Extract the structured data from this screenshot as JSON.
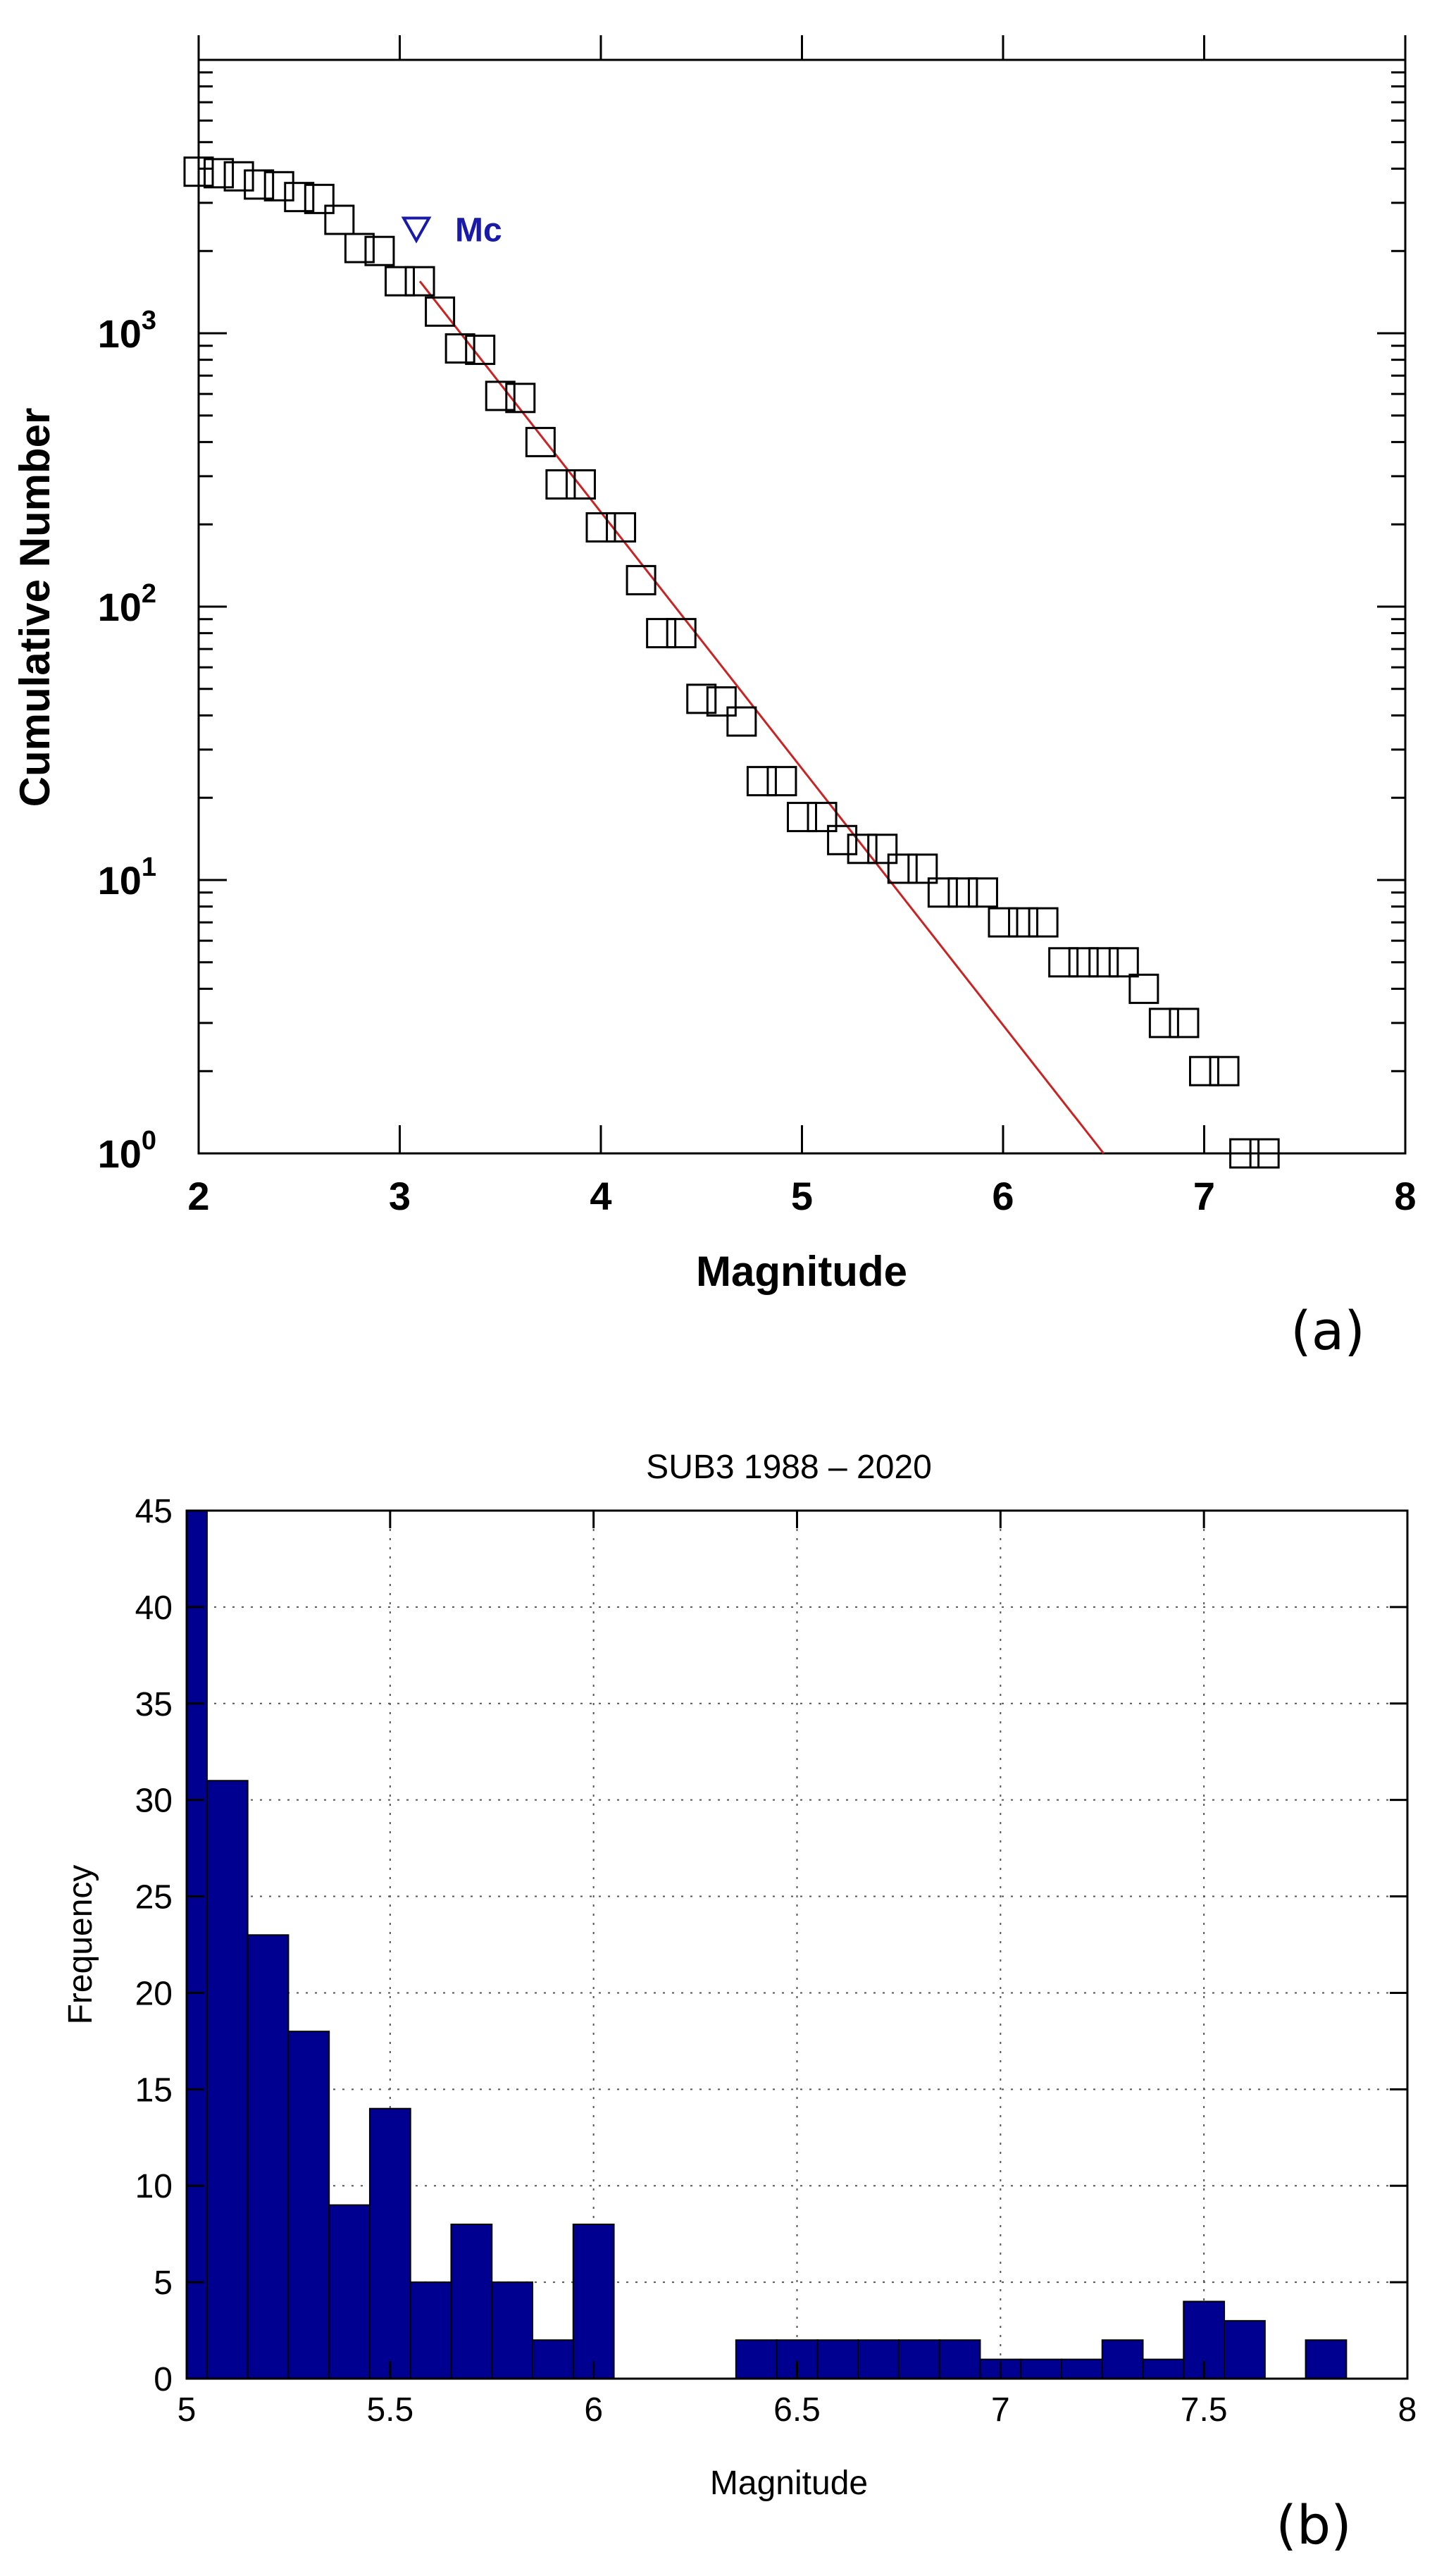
{
  "colors": {
    "fit_line": "#cc2222",
    "mc_marker": "#1a1aaa",
    "bars": "#000090",
    "bar_edge": "#000000"
  },
  "panel_a": {
    "label": "(a)",
    "chart_data": {
      "type": "scatter",
      "xlabel": "Magnitude",
      "ylabel": "Cumulative Number",
      "xlim": [
        2,
        8
      ],
      "ylim": [
        1,
        10000
      ],
      "yscale": "log",
      "x_ticks": [
        "2",
        "3",
        "4",
        "5",
        "6",
        "7",
        "8"
      ],
      "y_ticks": [
        {
          "base": "10",
          "exp": "0"
        },
        {
          "base": "10",
          "exp": "1"
        },
        {
          "base": "10",
          "exp": "2"
        },
        {
          "base": "10",
          "exp": "3"
        }
      ],
      "grid": false,
      "mc": {
        "label": "Mc",
        "magnitude": 3.1
      },
      "series": [
        {
          "marker": "square",
          "points": [
            [
              2.0,
              3900
            ],
            [
              2.1,
              3850
            ],
            [
              2.2,
              3750
            ],
            [
              2.3,
              3500
            ],
            [
              2.4,
              3450
            ],
            [
              2.5,
              3150
            ],
            [
              2.6,
              3100
            ],
            [
              2.7,
              2600
            ],
            [
              2.8,
              2050
            ],
            [
              2.9,
              2000
            ],
            [
              3.0,
              1550
            ],
            [
              3.1,
              1550
            ],
            [
              3.2,
              1200
            ],
            [
              3.3,
              880
            ],
            [
              3.4,
              870
            ],
            [
              3.5,
              590
            ],
            [
              3.6,
              580
            ],
            [
              3.7,
              400
            ],
            [
              3.8,
              280
            ],
            [
              3.9,
              280
            ],
            [
              4.0,
              195
            ],
            [
              4.1,
              195
            ],
            [
              4.2,
              125
            ],
            [
              4.3,
              80
            ],
            [
              4.4,
              80
            ],
            [
              4.5,
              46
            ],
            [
              4.6,
              45
            ],
            [
              4.7,
              38
            ],
            [
              4.8,
              23
            ],
            [
              4.9,
              23
            ],
            [
              5.0,
              17
            ],
            [
              5.1,
              17
            ],
            [
              5.2,
              14
            ],
            [
              5.3,
              13
            ],
            [
              5.4,
              13
            ],
            [
              5.5,
              11
            ],
            [
              5.6,
              11
            ],
            [
              5.7,
              9
            ],
            [
              5.8,
              9
            ],
            [
              5.9,
              9
            ],
            [
              6.0,
              7
            ],
            [
              6.1,
              7
            ],
            [
              6.2,
              7
            ],
            [
              6.3,
              5
            ],
            [
              6.4,
              5
            ],
            [
              6.5,
              5
            ],
            [
              6.6,
              5
            ],
            [
              6.7,
              4
            ],
            [
              6.8,
              3
            ],
            [
              6.9,
              3
            ],
            [
              7.0,
              2
            ],
            [
              7.1,
              2
            ],
            [
              7.2,
              1
            ],
            [
              7.3,
              1
            ]
          ]
        }
      ],
      "fit_line": {
        "from": [
          3.1,
          1550
        ],
        "to": [
          6.5,
          1
        ]
      }
    }
  },
  "panel_b": {
    "label": "(b)",
    "chart_data": {
      "type": "bar",
      "title": "SUB3 1988 – 2020",
      "xlabel": "Magnitude",
      "ylabel": "Frequency",
      "xlim": [
        5,
        8
      ],
      "ylim": [
        0,
        45
      ],
      "grid": true,
      "x_ticks": [
        "5",
        "5.5",
        "6",
        "6.5",
        "7",
        "7.5",
        "8"
      ],
      "y_ticks": [
        "0",
        "5",
        "10",
        "15",
        "20",
        "25",
        "30",
        "35",
        "40",
        "45"
      ],
      "bin_width": 0.1,
      "bins": [
        {
          "center": 5.0,
          "count": 45
        },
        {
          "center": 5.1,
          "count": 31
        },
        {
          "center": 5.2,
          "count": 23
        },
        {
          "center": 5.3,
          "count": 18
        },
        {
          "center": 5.4,
          "count": 9
        },
        {
          "center": 5.5,
          "count": 14
        },
        {
          "center": 5.6,
          "count": 5
        },
        {
          "center": 5.7,
          "count": 8
        },
        {
          "center": 5.8,
          "count": 5
        },
        {
          "center": 5.9,
          "count": 2
        },
        {
          "center": 6.0,
          "count": 8
        },
        {
          "center": 6.1,
          "count": 0
        },
        {
          "center": 6.2,
          "count": 0
        },
        {
          "center": 6.3,
          "count": 0
        },
        {
          "center": 6.4,
          "count": 2
        },
        {
          "center": 6.5,
          "count": 2
        },
        {
          "center": 6.6,
          "count": 2
        },
        {
          "center": 6.7,
          "count": 2
        },
        {
          "center": 6.8,
          "count": 2
        },
        {
          "center": 6.9,
          "count": 2
        },
        {
          "center": 7.0,
          "count": 1
        },
        {
          "center": 7.1,
          "count": 1
        },
        {
          "center": 7.2,
          "count": 1
        },
        {
          "center": 7.3,
          "count": 2
        },
        {
          "center": 7.4,
          "count": 1
        },
        {
          "center": 7.5,
          "count": 4
        },
        {
          "center": 7.6,
          "count": 3
        },
        {
          "center": 7.7,
          "count": 0
        },
        {
          "center": 7.8,
          "count": 2
        }
      ]
    }
  }
}
